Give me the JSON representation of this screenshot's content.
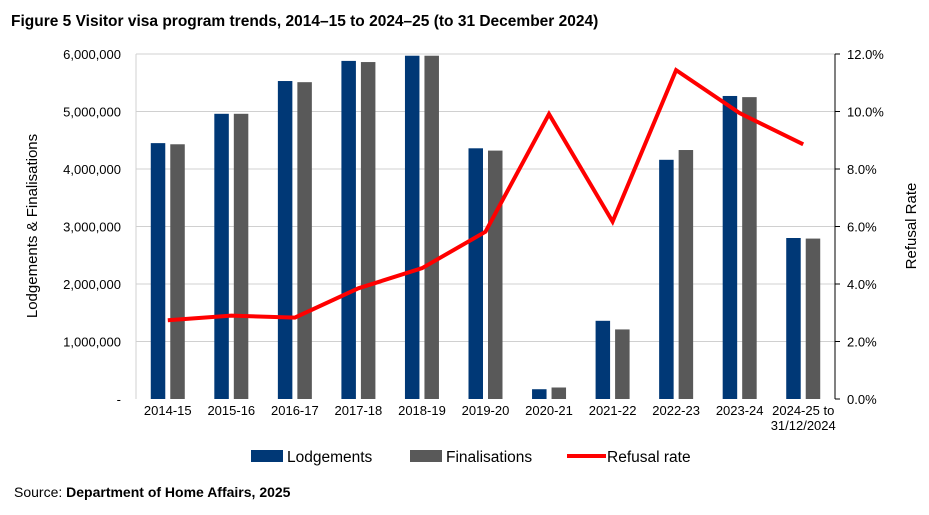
{
  "figure": {
    "title": "Figure 5 Visitor visa program trends, 2014–15 to 2024–25 (to 31 December 2024)",
    "source_label": "Source:",
    "source_text": "Department of Home Affairs, 2025"
  },
  "colors": {
    "lodgements": "#003876",
    "finalisations": "#595959",
    "refusal_rate": "#ff0000",
    "grid": "#d0d0d0"
  },
  "chart_data": {
    "type": "bar",
    "title": "Figure 5 Visitor visa program trends, 2014–15 to 2024–25 (to 31 December 2024)",
    "categories": [
      "2014-15",
      "2015-16",
      "2016-17",
      "2017-18",
      "2018-19",
      "2019-20",
      "2020-21",
      "2021-22",
      "2022-23",
      "2023-24",
      "2024-25 to 31/12/2024"
    ],
    "category_labels": [
      [
        "2014-15"
      ],
      [
        "2015-16"
      ],
      [
        "2016-17"
      ],
      [
        "2017-18"
      ],
      [
        "2018-19"
      ],
      [
        "2019-20"
      ],
      [
        "2020-21"
      ],
      [
        "2021-22"
      ],
      [
        "2022-23"
      ],
      [
        "2023-24"
      ],
      [
        "2024-25 to",
        "31/12/2024"
      ]
    ],
    "series": [
      {
        "name": "Lodgements",
        "type": "bar",
        "axis": "left",
        "values": [
          4450000,
          4960000,
          5530000,
          5880000,
          5970000,
          4360000,
          170000,
          1360000,
          4160000,
          5270000,
          2800000
        ]
      },
      {
        "name": "Finalisations",
        "type": "bar",
        "axis": "left",
        "values": [
          4430000,
          4960000,
          5510000,
          5860000,
          5970000,
          4320000,
          200000,
          1210000,
          4330000,
          5250000,
          2790000
        ]
      },
      {
        "name": "Refusal rate",
        "type": "line",
        "axis": "right",
        "values": [
          2.74,
          2.9,
          2.83,
          3.85,
          4.55,
          5.82,
          9.91,
          6.17,
          11.44,
          9.94,
          8.86
        ]
      }
    ],
    "ylabel": "Lodgements & Finalisations",
    "y2label": "Refusal Rate",
    "ylim": [
      0,
      6000000
    ],
    "y2lim": [
      0,
      12
    ],
    "yticks": [
      "-",
      "1,000,000",
      "2,000,000",
      "3,000,000",
      "4,000,000",
      "5,000,000",
      "6,000,000"
    ],
    "y2ticks": [
      "0.0%",
      "2.0%",
      "4.0%",
      "6.0%",
      "8.0%",
      "10.0%",
      "12.0%"
    ],
    "grid": true,
    "legend": {
      "placement": "bottom",
      "entries": [
        "Lodgements",
        "Finalisations",
        "Refusal rate"
      ]
    }
  }
}
